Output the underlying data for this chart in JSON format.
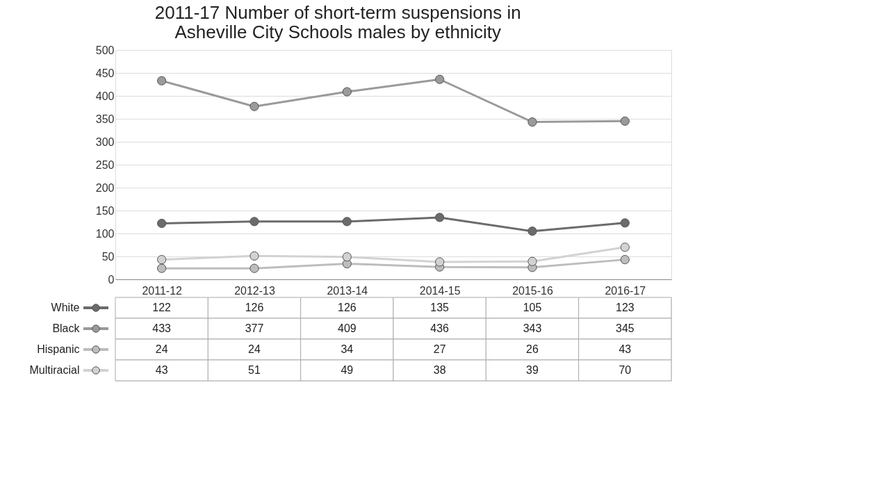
{
  "chart_data": {
    "type": "line",
    "title": "2011-17 Number of short-term suspensions in Asheville City Schools males by ethnicity",
    "categories": [
      "2011-12",
      "2012-13",
      "2013-14",
      "2014-15",
      "2015-16",
      "2016-17"
    ],
    "series": [
      {
        "name": "White",
        "color": "#6b6b6b",
        "values": [
          122,
          126,
          126,
          135,
          105,
          123
        ]
      },
      {
        "name": "Black",
        "color": "#9a9a9a",
        "values": [
          433,
          377,
          409,
          436,
          343,
          345
        ]
      },
      {
        "name": "Hispanic",
        "color": "#bdbdbd",
        "values": [
          24,
          24,
          34,
          27,
          26,
          43
        ]
      },
      {
        "name": "Multiracial",
        "color": "#d2d2d2",
        "values": [
          43,
          51,
          49,
          38,
          39,
          70
        ]
      }
    ],
    "ylim": [
      0,
      500
    ],
    "yticks": [
      0,
      50,
      100,
      150,
      200,
      250,
      300,
      350,
      400,
      450,
      500
    ],
    "grid": "y",
    "marker": "circle",
    "line_style": "solid",
    "legend": "bottom",
    "data_labels": true
  }
}
